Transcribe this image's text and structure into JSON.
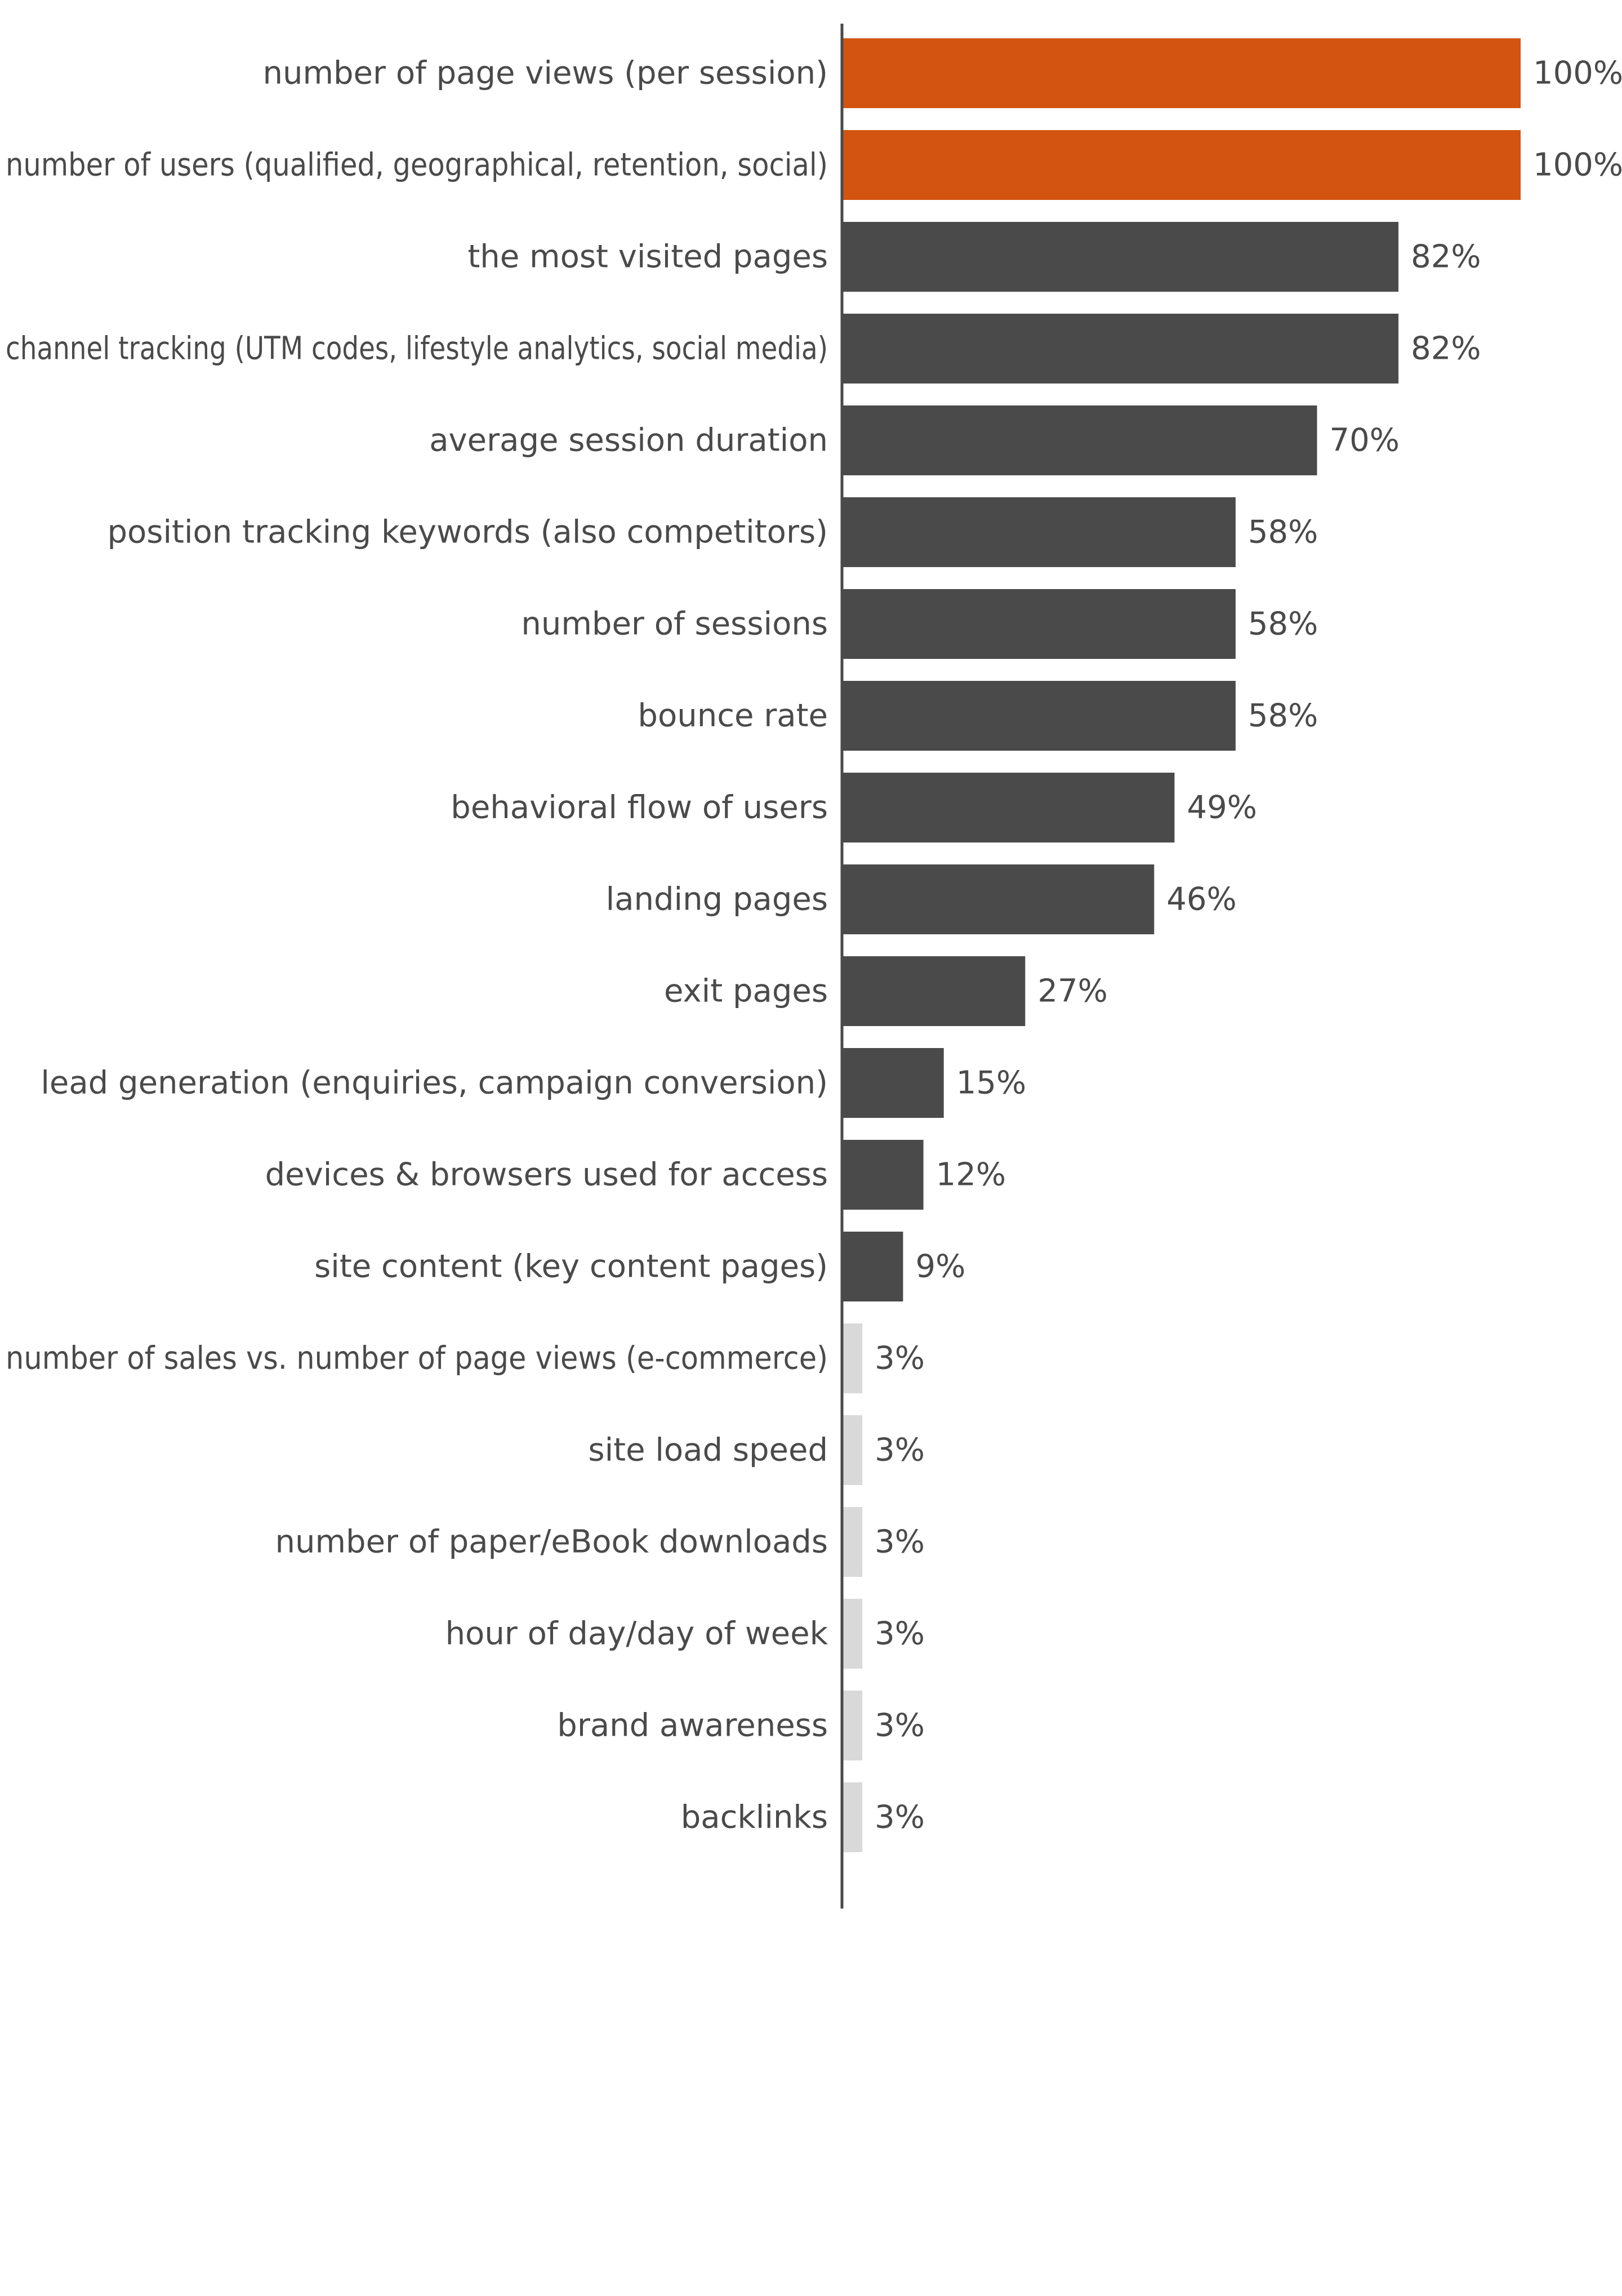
{
  "chart_data": {
    "type": "bar",
    "orientation": "horizontal",
    "title": "",
    "xlabel": "",
    "ylabel": "",
    "xlim": [
      0,
      100
    ],
    "grid": false,
    "legend": "none",
    "value_suffix": "%",
    "colors": {
      "highlight": "#d35411",
      "default": "#4a4a4a",
      "minor": "#d9d9d9",
      "text": "#4a4a4a",
      "axis": "#4a4a4a",
      "background": "#ffffff"
    },
    "categories": [
      "number of page views (per session)",
      "number of users (qualified, geographical, retention, social)",
      "the most visited pages",
      "channel tracking (UTM codes, lifestyle analytics, social media)",
      "average session duration",
      "position tracking keywords (also competitors)",
      "number of sessions",
      "bounce rate",
      "behavioral flow of users",
      "landing pages",
      "exit pages",
      "lead generation (enquiries, campaign conversion)",
      "devices & browsers used for access",
      "site content (key content pages)",
      "number of sales vs. number of page views (e-commerce)",
      "site load speed",
      "number of paper/eBook downloads",
      "hour of day/day of week",
      "brand awareness",
      "backlinks"
    ],
    "values": [
      100,
      100,
      82,
      82,
      70,
      58,
      58,
      58,
      49,
      46,
      27,
      15,
      12,
      9,
      3,
      3,
      3,
      3,
      3,
      3
    ],
    "labels": [
      "100%",
      "100%",
      "82%",
      "82%",
      "70%",
      "58%",
      "58%",
      "58%",
      "49%",
      "46%",
      "27%",
      "15%",
      "12%",
      "9%",
      "3%",
      "3%",
      "3%",
      "3%",
      "3%",
      "3%"
    ],
    "bar_color_roles": [
      "highlight",
      "highlight",
      "default",
      "default",
      "default",
      "default",
      "default",
      "default",
      "default",
      "default",
      "default",
      "default",
      "default",
      "default",
      "minor",
      "minor",
      "minor",
      "minor",
      "minor",
      "minor"
    ]
  }
}
